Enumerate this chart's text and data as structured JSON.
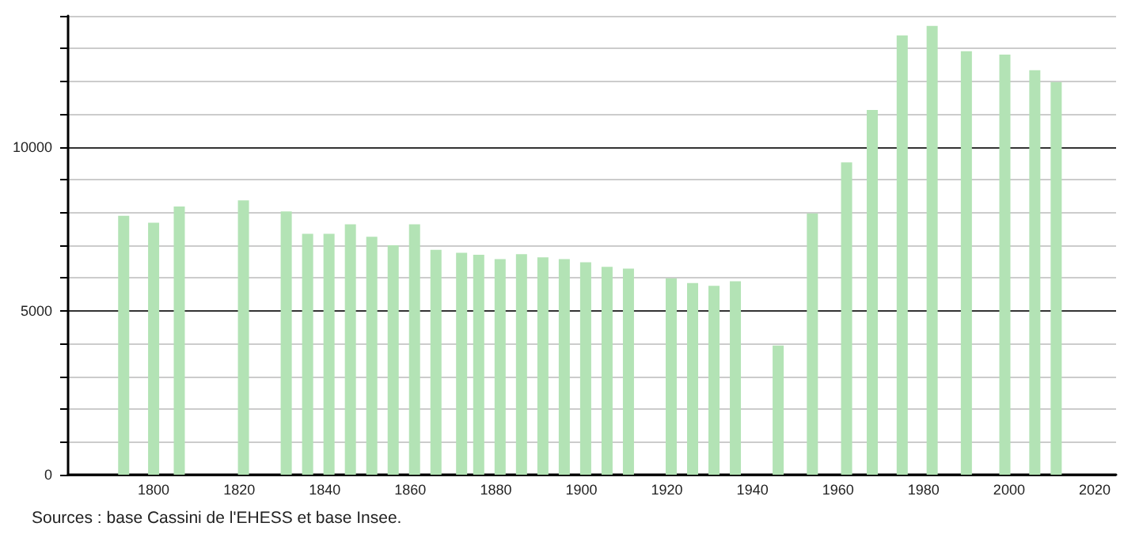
{
  "chart_data": {
    "type": "bar",
    "x": [
      1793,
      1800,
      1806,
      1821,
      1831,
      1836,
      1841,
      1846,
      1851,
      1856,
      1861,
      1866,
      1872,
      1876,
      1881,
      1886,
      1891,
      1896,
      1901,
      1906,
      1911,
      1921,
      1926,
      1931,
      1936,
      1946,
      1954,
      1962,
      1968,
      1975,
      1982,
      1990,
      1999,
      2006,
      2011
    ],
    "values": [
      7900,
      7690,
      8180,
      8370,
      8030,
      7350,
      7350,
      7640,
      7260,
      7000,
      7640,
      6860,
      6770,
      6710,
      6580,
      6730,
      6630,
      6580,
      6480,
      6340,
      6290,
      5990,
      5850,
      5760,
      5900,
      3940,
      7970,
      9530,
      11130,
      13400,
      13690,
      12920,
      12820,
      12340,
      11980
    ],
    "color": "#b3e3b5",
    "xlim": [
      1780,
      2025
    ],
    "xticks": [
      1800,
      1820,
      1840,
      1860,
      1880,
      1900,
      1920,
      1940,
      1960,
      1980,
      2000,
      2020
    ],
    "ylim": [
      0,
      14000
    ],
    "yticks": [
      0,
      {
        "value": 1000,
        "label": null
      },
      {
        "value": 2000,
        "label": null
      },
      {
        "value": 3000,
        "label": null
      },
      {
        "value": 4000,
        "label": null
      },
      5000,
      {
        "value": 6000,
        "label": null
      },
      {
        "value": 7000,
        "label": null
      },
      {
        "value": 8000,
        "label": null
      },
      {
        "value": 9000,
        "label": null
      },
      10000,
      {
        "value": 11000,
        "label": null
      },
      {
        "value": 12000,
        "label": null
      },
      {
        "value": 13000,
        "label": null
      },
      {
        "value": 14000,
        "label": null
      }
    ],
    "grid": "y",
    "annotations": [
      "Sources : base Cassini de l'EHESS et base Insee."
    ]
  }
}
